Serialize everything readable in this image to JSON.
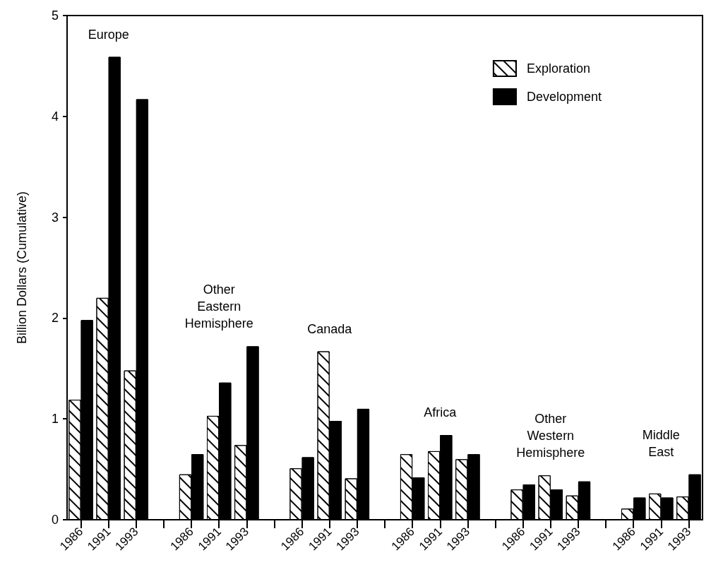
{
  "chart_data": {
    "type": "bar",
    "ylabel": "Billion Dollars (Cumulative)",
    "categories": [
      "1986",
      "1991",
      "1993",
      null,
      "1986",
      "1991",
      "1993",
      null,
      "1986",
      "1991",
      "1993",
      null,
      "1986",
      "1991",
      "1993",
      null,
      "1986",
      "1991",
      "1993",
      null,
      "1986",
      "1991",
      "1993"
    ],
    "series": [
      {
        "name": "Exploration",
        "color": "#ffffff",
        "values": [
          1.19,
          2.2,
          1.48,
          null,
          0.45,
          1.03,
          0.74,
          null,
          0.51,
          1.67,
          0.41,
          null,
          0.65,
          0.68,
          0.6,
          null,
          0.3,
          0.44,
          0.24,
          null,
          0.11,
          0.26,
          0.23
        ]
      },
      {
        "name": "Development",
        "color": "#000000",
        "values": [
          1.98,
          4.59,
          4.17,
          null,
          0.65,
          1.36,
          1.72,
          null,
          0.62,
          0.98,
          1.1,
          null,
          0.42,
          0.84,
          0.65,
          null,
          0.35,
          0.3,
          0.38,
          null,
          0.22,
          0.22,
          0.45
        ]
      }
    ],
    "annotations": [
      "Europe",
      "Other\nEastern\nHemisphere",
      "Canada",
      "Africa",
      "Other\nWestern\nHemisphere",
      "Middle\nEast"
    ],
    "ylim": [
      0,
      5
    ],
    "yticks": [
      0,
      1,
      2,
      3,
      4,
      5
    ],
    "grid": false,
    "legend": "top right"
  }
}
